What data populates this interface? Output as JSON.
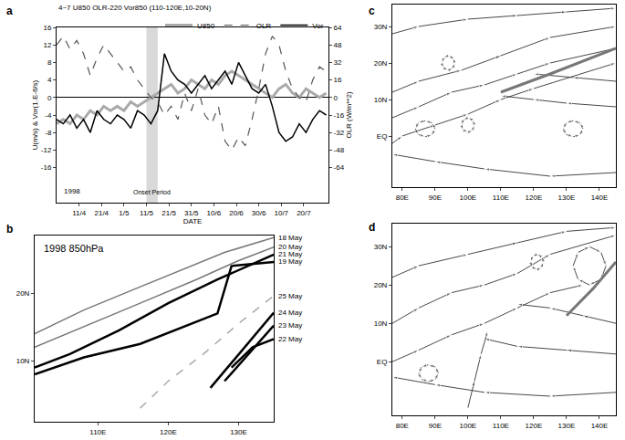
{
  "chart_data": [
    {
      "label": "a",
      "type": "line",
      "title": "4~7 U850 OLR-220 Vor850 (110-120E,10-20N)",
      "x_label": "DATE",
      "y_label": "U(m/s) & Vor(1.E-6/s)",
      "y2_label": "OLR (W/m**2)",
      "note": "1998",
      "shaded": {
        "x": [
          40,
          45
        ],
        "label": "Onset Period"
      },
      "legend": "top right",
      "grid": false,
      "x": [
        0,
        3,
        6,
        9,
        12,
        15,
        18,
        21,
        24,
        27,
        30,
        33,
        36,
        39,
        42,
        45,
        48,
        51,
        54,
        57,
        60,
        63,
        66,
        69,
        72,
        75,
        78,
        81,
        84,
        87,
        90,
        93,
        96,
        99,
        102,
        105,
        108,
        111,
        114,
        117,
        120
      ],
      "xlim": [
        0,
        121
      ],
      "xticks": [
        {
          "value": 10,
          "label": "11/4"
        },
        {
          "value": 20,
          "label": "21/4"
        },
        {
          "value": 30,
          "label": "1/5"
        },
        {
          "value": 40,
          "label": "11/5"
        },
        {
          "value": 50,
          "label": "21/5"
        },
        {
          "value": 60,
          "label": "31/5"
        },
        {
          "value": 70,
          "label": "10/6"
        },
        {
          "value": 80,
          "label": "20/6"
        },
        {
          "value": 90,
          "label": "30/6"
        },
        {
          "value": 100,
          "label": "10/7"
        },
        {
          "value": 110,
          "label": "20/7"
        }
      ],
      "ylim": [
        -24,
        16
      ],
      "yticks": [
        -16,
        -12,
        -8,
        -4,
        0,
        4,
        8,
        12,
        16
      ],
      "y2lim": [
        -96,
        64
      ],
      "y2ticks": [
        -64,
        -48,
        -32,
        -16,
        0,
        16,
        32,
        48,
        64
      ],
      "series": [
        {
          "name": "U850",
          "color": "#aaaaaa",
          "line_style": "solid",
          "values": [
            -6,
            -5,
            -6,
            -4,
            -5,
            -3,
            -4,
            -2,
            -3,
            -2,
            -3,
            -1,
            -2,
            -1,
            0,
            1,
            2,
            3,
            1,
            2,
            4,
            3,
            2,
            4,
            3,
            5,
            6,
            5,
            4,
            3,
            2,
            1,
            0,
            2,
            3,
            1,
            0,
            2,
            1,
            0,
            1
          ]
        },
        {
          "name": "OLR",
          "color": "#555555",
          "line_style": "dashed",
          "axis": "y2",
          "values": [
            48,
            56,
            44,
            52,
            40,
            20,
            36,
            48,
            40,
            32,
            24,
            28,
            16,
            8,
            0,
            -4,
            -16,
            -8,
            -20,
            4,
            -12,
            8,
            -16,
            -24,
            -8,
            -40,
            -48,
            -36,
            -44,
            -20,
            8,
            40,
            56,
            48,
            24,
            8,
            0,
            -4,
            16,
            28,
            24
          ]
        },
        {
          "name": "Vor",
          "color": "#000000",
          "line_style": "solid",
          "values": [
            -5,
            -6,
            -4,
            -7,
            -5,
            -8,
            -3,
            -5,
            -6,
            -4,
            -5,
            -7,
            -3,
            -4,
            -6,
            -3,
            10,
            6,
            4,
            3,
            1,
            3,
            5,
            2,
            4,
            6,
            3,
            8,
            5,
            2,
            1,
            3,
            -2,
            -8,
            -10,
            -9,
            -6,
            -8,
            -5,
            -3,
            -4
          ]
        }
      ]
    },
    {
      "label": "b",
      "type": "line",
      "title": "1998 850hPa",
      "xlim": [
        101,
        135
      ],
      "xticks": [
        {
          "value": 110,
          "label": "110E"
        },
        {
          "value": 120,
          "label": "120E"
        },
        {
          "value": 130,
          "label": "130E"
        }
      ],
      "ylim": [
        1,
        28.5
      ],
      "yticks": [
        {
          "value": 10,
          "label": "10N"
        },
        {
          "value": 20,
          "label": "20N"
        }
      ],
      "series": [
        {
          "name": "18 May",
          "color": "#777777",
          "line_style": "solid",
          "x": [
            101,
            108,
            115,
            122,
            128,
            135
          ],
          "y": [
            14,
            17.5,
            20.5,
            23.5,
            26,
            28.2
          ]
        },
        {
          "name": "20 May",
          "color": "#777777",
          "line_style": "solid",
          "x": [
            101,
            108,
            116,
            124,
            130,
            135
          ],
          "y": [
            12,
            15,
            18.5,
            22,
            24.8,
            26.8
          ]
        },
        {
          "name": "21 May",
          "color": "#000000",
          "line_style": "solid",
          "x": [
            101,
            106,
            113,
            120,
            127,
            135
          ],
          "y": [
            9,
            11,
            14.5,
            18.5,
            22,
            25.7
          ]
        },
        {
          "name": "19 May",
          "color": "#000000",
          "line_style": "solid",
          "x": [
            101,
            108,
            116,
            122,
            127,
            129,
            135
          ],
          "y": [
            8,
            10.5,
            12.5,
            15,
            17,
            24,
            24.6
          ]
        },
        {
          "name": "25 May",
          "color": "#aaaaaa",
          "line_style": "dashed",
          "x": [
            116,
            120,
            125,
            130,
            135
          ],
          "y": [
            3,
            7,
            11,
            15.5,
            19.6
          ]
        },
        {
          "name": "24 May",
          "color": "#000000",
          "line_style": "solid",
          "x": [
            126,
            130,
            135
          ],
          "y": [
            6,
            11,
            17.1
          ]
        },
        {
          "name": "23 May",
          "color": "#000000",
          "line_style": "solid",
          "x": [
            128,
            131,
            135
          ],
          "y": [
            7,
            10.5,
            15.2
          ]
        },
        {
          "name": "22 May",
          "color": "#000000",
          "line_style": "solid",
          "x": [
            129,
            132,
            135
          ],
          "y": [
            9,
            12,
            13.2
          ]
        }
      ]
    },
    {
      "label": "c",
      "type": "streamline",
      "xlim": [
        77,
        145
      ],
      "xticks": [
        {
          "value": 80,
          "label": "80E"
        },
        {
          "value": 90,
          "label": "90E"
        },
        {
          "value": 100,
          "label": "100E"
        },
        {
          "value": 110,
          "label": "110E"
        },
        {
          "value": 120,
          "label": "120E"
        },
        {
          "value": 130,
          "label": "130E"
        },
        {
          "value": 140,
          "label": "140E"
        }
      ],
      "ylim": [
        -14,
        36
      ],
      "yticks": [
        {
          "value": 0,
          "label": "EQ"
        },
        {
          "value": 10,
          "label": "10N"
        },
        {
          "value": 20,
          "label": "20N"
        },
        {
          "value": 30,
          "label": "30N"
        }
      ],
      "series": [
        {
          "color": "#333333",
          "x": [
            77,
            85,
            95,
            105,
            115,
            125,
            145
          ],
          "y": [
            5,
            8,
            12,
            14,
            17,
            20,
            24
          ]
        },
        {
          "color": "#333333",
          "x": [
            77,
            85,
            98,
            110,
            125,
            145
          ],
          "y": [
            12,
            15,
            18,
            22,
            27,
            30
          ]
        },
        {
          "color": "#333333",
          "x": [
            77,
            80,
            90,
            100,
            110,
            120,
            145
          ],
          "y": [
            -2,
            0,
            3,
            6,
            10,
            13,
            20
          ]
        },
        {
          "color": "#333333",
          "x": [
            145,
            130,
            120,
            110
          ],
          "y": [
            8,
            9,
            10,
            11
          ]
        },
        {
          "color": "#333333",
          "x": [
            145,
            132,
            120
          ],
          "y": [
            15,
            16,
            17
          ]
        },
        {
          "color": "#333333",
          "x": [
            77,
            85,
            100,
            115,
            130,
            145
          ],
          "y": [
            28,
            30,
            32,
            33,
            34,
            35
          ]
        },
        {
          "color": "#333333",
          "x": [
            145,
            125,
            105,
            90,
            77
          ],
          "y": [
            -10,
            -11,
            -9,
            -7,
            -5
          ]
        },
        {
          "color": "#333333",
          "x": [
            90,
            89.1,
            87,
            84.9,
            84,
            84.9,
            87,
            89.1,
            90
          ],
          "y": [
            2,
            3.6,
            4.2,
            3.6,
            2,
            0.4,
            -0.2,
            0.4,
            2
          ]
        },
        {
          "color": "#333333",
          "x": [
            102,
            101.4,
            100,
            98.6,
            98,
            98.6,
            100,
            101.4,
            102
          ],
          "y": [
            3,
            4.4,
            5,
            4.4,
            3,
            1.6,
            1,
            1.6,
            3
          ]
        },
        {
          "color": "#333333",
          "x": [
            135,
            134.1,
            132,
            129.9,
            129,
            129.9,
            132,
            134.1,
            135
          ],
          "y": [
            2,
            3.6,
            4.2,
            3.6,
            2,
            0.4,
            -0.2,
            0.4,
            2
          ]
        },
        {
          "color": "#333333",
          "x": [
            96,
            95.4,
            94,
            92.6,
            92,
            92.6,
            94,
            95.4,
            96
          ],
          "y": [
            20,
            21.4,
            22,
            21.4,
            20,
            18.6,
            18,
            18.6,
            20
          ]
        },
        {
          "type": "line",
          "color": "#777777",
          "x": [
            110,
            125,
            145
          ],
          "y": [
            12,
            17,
            24
          ]
        }
      ]
    },
    {
      "label": "d",
      "type": "streamline",
      "xlim": [
        77,
        145
      ],
      "xticks": [
        {
          "value": 80,
          "label": "80E"
        },
        {
          "value": 90,
          "label": "90E"
        },
        {
          "value": 100,
          "label": "100E"
        },
        {
          "value": 110,
          "label": "110E"
        },
        {
          "value": 120,
          "label": "120E"
        },
        {
          "value": 130,
          "label": "130E"
        },
        {
          "value": 140,
          "label": "140E"
        }
      ],
      "ylim": [
        -14,
        36
      ],
      "yticks": [
        {
          "value": 0,
          "label": "EQ"
        },
        {
          "value": 10,
          "label": "10N"
        },
        {
          "value": 20,
          "label": "20N"
        },
        {
          "value": 30,
          "label": "30N"
        }
      ],
      "series": [
        {
          "color": "#333333",
          "x": [
            77,
            85,
            95,
            105,
            115,
            125,
            135
          ],
          "y": [
            0,
            3,
            7,
            10,
            14,
            18,
            20
          ]
        },
        {
          "color": "#333333",
          "x": [
            77,
            85,
            95,
            105,
            115,
            125,
            145
          ],
          "y": [
            10,
            14,
            18,
            20,
            23,
            28,
            33
          ]
        },
        {
          "color": "#333333",
          "x": [
            77,
            85,
            100,
            115,
            130,
            145
          ],
          "y": [
            22,
            25,
            28,
            31,
            34,
            35
          ]
        },
        {
          "color": "#333333",
          "x": [
            145,
            135,
            125,
            115
          ],
          "y": [
            10,
            12,
            14,
            15
          ]
        },
        {
          "color": "#333333",
          "x": [
            145,
            130,
            115,
            105
          ],
          "y": [
            2,
            3,
            4,
            6
          ]
        },
        {
          "color": "#333333",
          "x": [
            100,
            102,
            104,
            106
          ],
          "y": [
            -12,
            -5,
            2,
            8
          ]
        },
        {
          "color": "#333333",
          "x": [
            145,
            125,
            105,
            90,
            77
          ],
          "y": [
            -8,
            -9,
            -8,
            -6,
            -4
          ]
        },
        {
          "color": "#333333",
          "x": [
            123,
            122.4,
            121,
            119.6,
            119,
            119.6,
            121,
            122.4,
            123
          ],
          "y": [
            26,
            27.4,
            28,
            27.4,
            26,
            24.6,
            24,
            24.6,
            26
          ]
        },
        {
          "color": "#333333",
          "x": [
            142,
            140.5,
            137,
            133.5,
            132,
            133.5,
            137,
            140.5,
            142
          ],
          "y": [
            25,
            21.5,
            20,
            21.5,
            25,
            28.5,
            30,
            28.5,
            25
          ]
        },
        {
          "color": "#333333",
          "x": [
            91,
            90.1,
            88,
            85.9,
            85,
            85.9,
            88,
            90.1,
            91
          ],
          "y": [
            -3,
            -1.4,
            -0.8,
            -1.4,
            -3,
            -4.6,
            -5.2,
            -4.6,
            -3
          ]
        },
        {
          "type": "line",
          "color": "#777777",
          "x": [
            130,
            138,
            145
          ],
          "y": [
            12,
            19,
            26
          ]
        }
      ]
    }
  ]
}
